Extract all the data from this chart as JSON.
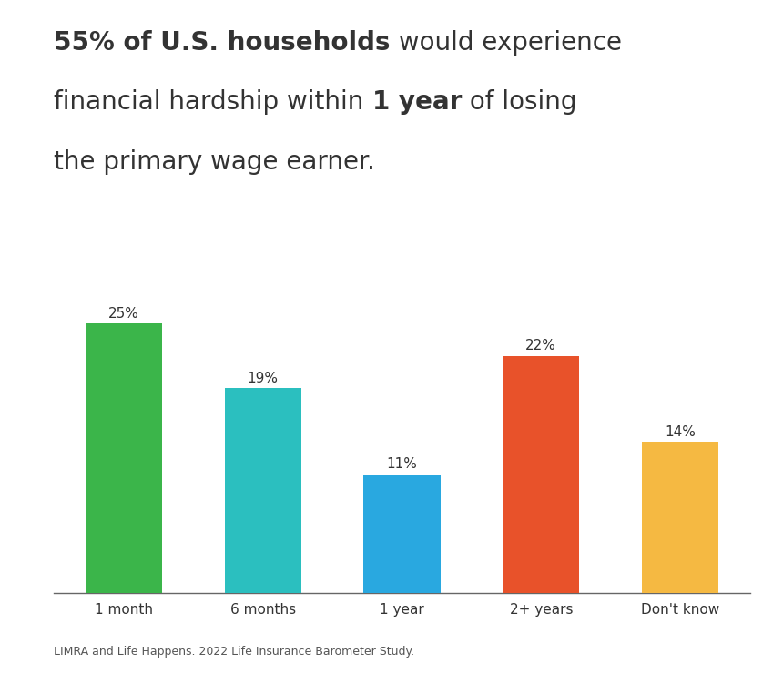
{
  "categories": [
    "1 month",
    "6 months",
    "1 year",
    "2+ years",
    "Don't know"
  ],
  "values": [
    25,
    19,
    11,
    22,
    14
  ],
  "bar_colors": [
    "#3bb54a",
    "#2bbfbf",
    "#29a8e0",
    "#e8522a",
    "#f5b942"
  ],
  "value_labels": [
    "25%",
    "19%",
    "11%",
    "22%",
    "14%"
  ],
  "title_line1_bold": "55% of U.S. households",
  "title_line1_normal": " would experience",
  "title_line2_normal1": "financial hardship within ",
  "title_line2_bold": "1 year",
  "title_line2_normal2": " of losing",
  "title_line3": "the primary wage earner.",
  "footnote": "LIMRA and Life Happens. 2022 Life Insurance Barometer Study.",
  "background_color": "#ffffff",
  "text_color": "#333333",
  "bar_label_fontsize": 11,
  "xlabel_fontsize": 11,
  "title_fontsize": 20,
  "footnote_fontsize": 9
}
